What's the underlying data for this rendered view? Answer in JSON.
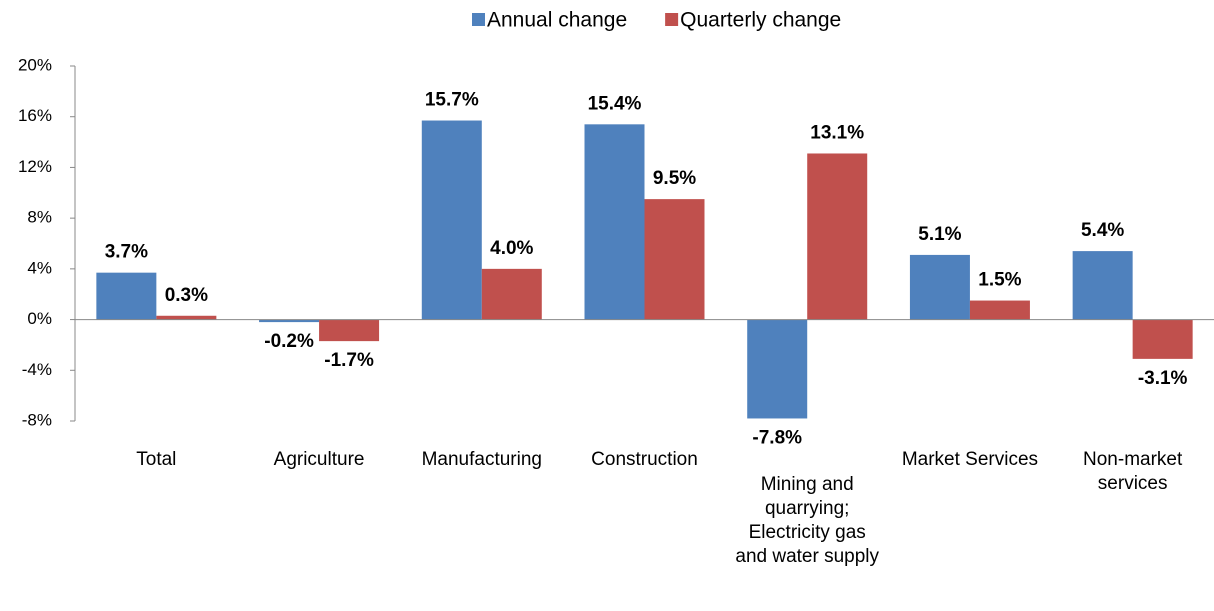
{
  "chart_data": {
    "type": "bar",
    "categories": [
      "Total",
      "Agriculture",
      "Manufacturing",
      "Construction",
      "Mining and quarrying; Electricity gas and water supply",
      "Market Services",
      "Non-market services"
    ],
    "series": [
      {
        "name": "Annual change",
        "color": "#4f81bd",
        "values": [
          3.7,
          -0.2,
          15.7,
          15.4,
          -7.8,
          5.1,
          5.4
        ],
        "value_labels": [
          "3.7%",
          "-0.2%",
          "15.7%",
          "15.4%",
          "-7.8%",
          "5.1%",
          "5.4%"
        ]
      },
      {
        "name": "Quarterly change",
        "color": "#c0504d",
        "values": [
          0.3,
          -1.7,
          4.0,
          9.5,
          13.1,
          1.5,
          -3.1
        ],
        "value_labels": [
          "0.3%",
          "-1.7%",
          "4.0%",
          "9.5%",
          "13.1%",
          "1.5%",
          "-3.1%"
        ]
      }
    ],
    "ylim": [
      -8,
      20
    ],
    "yticks": [
      {
        "value": -8,
        "label": "-8%"
      },
      {
        "value": -4,
        "label": "-4%"
      },
      {
        "value": 0,
        "label": "0%"
      },
      {
        "value": 4,
        "label": "4%"
      },
      {
        "value": 8,
        "label": "8%"
      },
      {
        "value": 12,
        "label": "12%"
      },
      {
        "value": 16,
        "label": "16%"
      },
      {
        "value": 20,
        "label": "20%"
      }
    ],
    "legend": "top",
    "grid": false
  }
}
